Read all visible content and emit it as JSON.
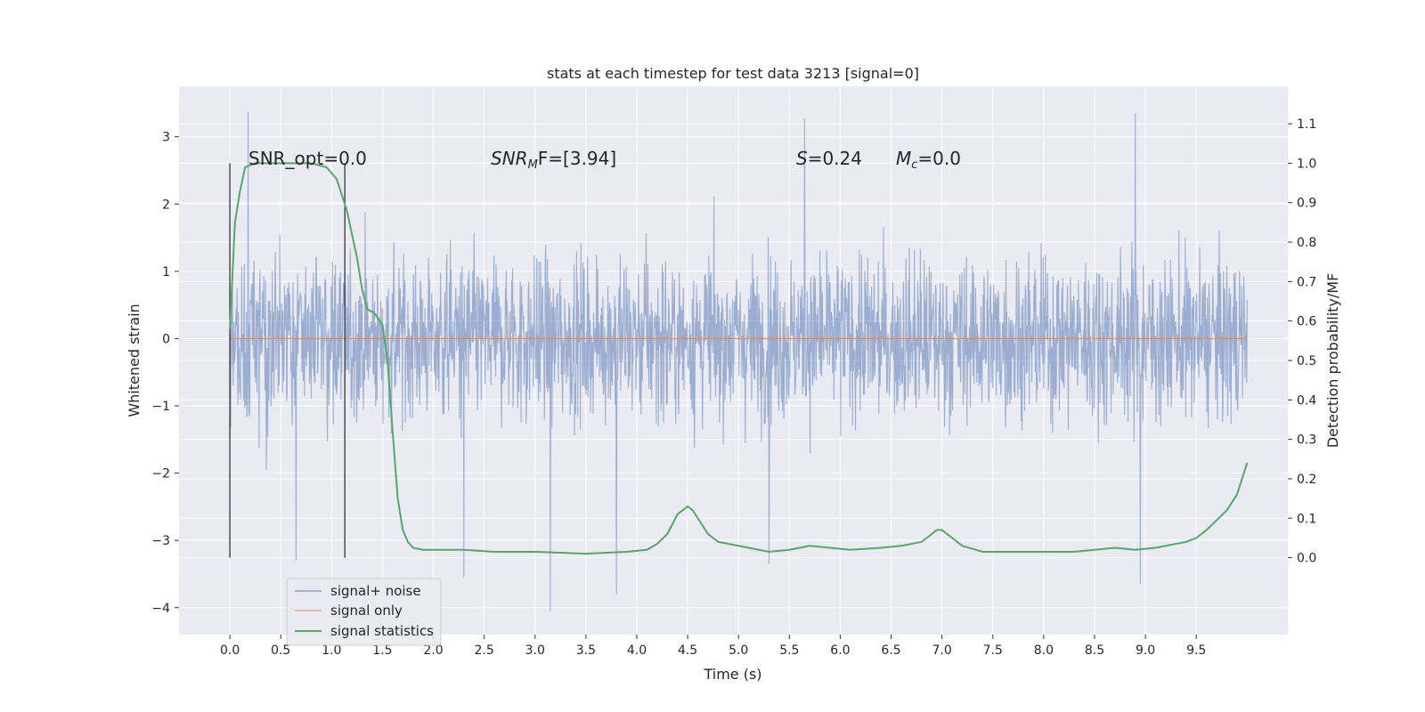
{
  "chart_data": {
    "type": "line",
    "title": "stats at each timestep for test data 3213 [signal=0]",
    "xlabel": "Time (s)",
    "ylabel": "Whitened strain",
    "y2label": "Detection probability/MF",
    "xlim": [
      -0.5,
      10.4
    ],
    "ylim": [
      -4.4,
      3.75
    ],
    "y2lim": [
      -0.195,
      1.195
    ],
    "x_ticks": [
      0.0,
      0.5,
      1.0,
      1.5,
      2.0,
      2.5,
      3.0,
      3.5,
      4.0,
      4.5,
      5.0,
      5.5,
      6.0,
      6.5,
      7.0,
      7.5,
      8.0,
      8.5,
      9.0,
      9.5
    ],
    "x_tick_labels": [
      "0.0",
      "0.5",
      "1.0",
      "1.5",
      "2.0",
      "2.5",
      "3.0",
      "3.5",
      "4.0",
      "4.5",
      "5.0",
      "5.5",
      "6.0",
      "6.5",
      "7.0",
      "7.5",
      "8.0",
      "8.5",
      "9.0",
      "9.5"
    ],
    "y_ticks": [
      3,
      2,
      1,
      0,
      -1,
      -2,
      -3,
      -4
    ],
    "y_tick_labels": [
      "3",
      "2",
      "1",
      "0",
      "−1",
      "−2",
      "−3",
      "−4"
    ],
    "y2_ticks": [
      1.1,
      1.0,
      0.9,
      0.8,
      0.7,
      0.6,
      0.5,
      0.4,
      0.3,
      0.2,
      0.1,
      0.0
    ],
    "y2_tick_labels": [
      "1.1",
      "1.0",
      "0.9",
      "0.8",
      "0.7",
      "0.6",
      "0.5",
      "0.4",
      "0.3",
      "0.2",
      "0.1",
      "0.0"
    ],
    "grid": true,
    "legend_position": "lower-left",
    "annotations": {
      "snr_opt": "SNR_opt=0.0",
      "snr_mf_main": "SNR",
      "snr_mf_sub": "M",
      "snr_mf_rest": "F=[3.94]",
      "s_var": "S",
      "s_rest": "=0.24",
      "mc_var": "M",
      "mc_sub": "c",
      "mc_rest": "=0.0"
    },
    "vertical_markers_x": [
      0.0,
      1.13
    ],
    "series": [
      {
        "name": "signal+ noise",
        "color": "#4c72b0",
        "axis": "left",
        "description_values": "dense noise, roughly within -3.5 to 3.4",
        "t_start": 0.0,
        "t_end": 10.0,
        "extremes": [
          [
            0.18,
            3.37
          ],
          [
            0.65,
            -3.3
          ],
          [
            2.3,
            -3.55
          ],
          [
            3.15,
            -4.05
          ],
          [
            3.8,
            -3.8
          ],
          [
            5.3,
            -3.35
          ],
          [
            5.65,
            3.27
          ],
          [
            8.9,
            3.35
          ],
          [
            8.95,
            -3.65
          ]
        ]
      },
      {
        "name": "signal only",
        "color": "#dd8452",
        "axis": "left",
        "x": [
          0.0,
          10.0
        ],
        "y": [
          0.0,
          0.0
        ]
      },
      {
        "name": "signal statistics",
        "color": "#55a868",
        "axis": "right",
        "x": [
          0.0,
          0.05,
          0.1,
          0.15,
          0.25,
          0.4,
          0.6,
          0.8,
          0.95,
          1.05,
          1.15,
          1.25,
          1.3,
          1.35,
          1.42,
          1.5,
          1.55,
          1.6,
          1.65,
          1.7,
          1.75,
          1.8,
          1.9,
          2.0,
          2.3,
          2.6,
          3.0,
          3.5,
          3.9,
          4.1,
          4.2,
          4.3,
          4.4,
          4.5,
          4.55,
          4.6,
          4.7,
          4.8,
          5.0,
          5.3,
          5.5,
          5.7,
          5.9,
          6.1,
          6.4,
          6.6,
          6.8,
          6.9,
          6.95,
          7.0,
          7.1,
          7.2,
          7.4,
          7.8,
          8.0,
          8.3,
          8.5,
          8.7,
          8.9,
          9.1,
          9.3,
          9.4,
          9.5,
          9.6,
          9.8,
          9.9,
          9.95,
          10.0
        ],
        "y": [
          0.58,
          0.85,
          0.93,
          0.99,
          1.0,
          1.0,
          1.0,
          1.0,
          0.99,
          0.96,
          0.88,
          0.76,
          0.68,
          0.63,
          0.62,
          0.59,
          0.5,
          0.32,
          0.15,
          0.07,
          0.04,
          0.025,
          0.02,
          0.02,
          0.02,
          0.015,
          0.015,
          0.01,
          0.015,
          0.02,
          0.035,
          0.06,
          0.11,
          0.13,
          0.12,
          0.1,
          0.06,
          0.04,
          0.03,
          0.015,
          0.02,
          0.03,
          0.025,
          0.02,
          0.025,
          0.03,
          0.04,
          0.06,
          0.07,
          0.07,
          0.05,
          0.03,
          0.015,
          0.015,
          0.015,
          0.015,
          0.02,
          0.025,
          0.02,
          0.025,
          0.035,
          0.04,
          0.05,
          0.07,
          0.12,
          0.16,
          0.2,
          0.24
        ]
      }
    ]
  }
}
